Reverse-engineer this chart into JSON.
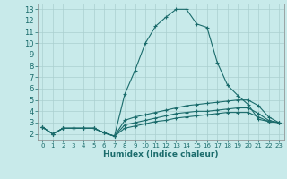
{
  "title": "",
  "xlabel": "Humidex (Indice chaleur)",
  "ylabel": "",
  "xlim": [
    -0.5,
    23.5
  ],
  "ylim": [
    1.5,
    13.5
  ],
  "xticks": [
    0,
    1,
    2,
    3,
    4,
    5,
    6,
    7,
    8,
    9,
    10,
    11,
    12,
    13,
    14,
    15,
    16,
    17,
    18,
    19,
    20,
    21,
    22,
    23
  ],
  "yticks": [
    2,
    3,
    4,
    5,
    6,
    7,
    8,
    9,
    10,
    11,
    12,
    13
  ],
  "bg_color": "#c8eaea",
  "grid_color": "#aacfcf",
  "line_color": "#1a6b6b",
  "line1_x": [
    0,
    1,
    2,
    3,
    4,
    5,
    6,
    7,
    8,
    9,
    10,
    11,
    12,
    13,
    14,
    15,
    16,
    17,
    18,
    19,
    20,
    21,
    22,
    23
  ],
  "line1_y": [
    2.6,
    2.0,
    2.5,
    2.5,
    2.5,
    2.5,
    2.1,
    1.8,
    5.5,
    7.6,
    10.0,
    11.5,
    12.3,
    13.0,
    13.0,
    11.7,
    11.4,
    8.3,
    6.3,
    5.4,
    4.6,
    3.3,
    3.1,
    3.0
  ],
  "line2_x": [
    0,
    1,
    2,
    3,
    4,
    5,
    6,
    7,
    8,
    9,
    10,
    11,
    12,
    13,
    14,
    15,
    16,
    17,
    18,
    19,
    20,
    21,
    22,
    23
  ],
  "line2_y": [
    2.6,
    2.0,
    2.5,
    2.5,
    2.5,
    2.5,
    2.1,
    1.8,
    3.2,
    3.5,
    3.7,
    3.9,
    4.1,
    4.3,
    4.5,
    4.6,
    4.7,
    4.8,
    4.9,
    5.0,
    5.0,
    4.5,
    3.5,
    3.0
  ],
  "line3_x": [
    0,
    1,
    2,
    3,
    4,
    5,
    6,
    7,
    8,
    9,
    10,
    11,
    12,
    13,
    14,
    15,
    16,
    17,
    18,
    19,
    20,
    21,
    22,
    23
  ],
  "line3_y": [
    2.6,
    2.0,
    2.5,
    2.5,
    2.5,
    2.5,
    2.1,
    1.8,
    2.8,
    3.0,
    3.2,
    3.4,
    3.6,
    3.8,
    3.9,
    4.0,
    4.0,
    4.1,
    4.2,
    4.3,
    4.3,
    3.8,
    3.2,
    3.0
  ],
  "line4_x": [
    0,
    1,
    2,
    3,
    4,
    5,
    6,
    7,
    8,
    9,
    10,
    11,
    12,
    13,
    14,
    15,
    16,
    17,
    18,
    19,
    20,
    21,
    22,
    23
  ],
  "line4_y": [
    2.6,
    2.0,
    2.5,
    2.5,
    2.5,
    2.5,
    2.1,
    1.8,
    2.5,
    2.7,
    2.9,
    3.1,
    3.2,
    3.4,
    3.5,
    3.6,
    3.7,
    3.8,
    3.9,
    3.9,
    3.9,
    3.5,
    3.1,
    3.0
  ]
}
